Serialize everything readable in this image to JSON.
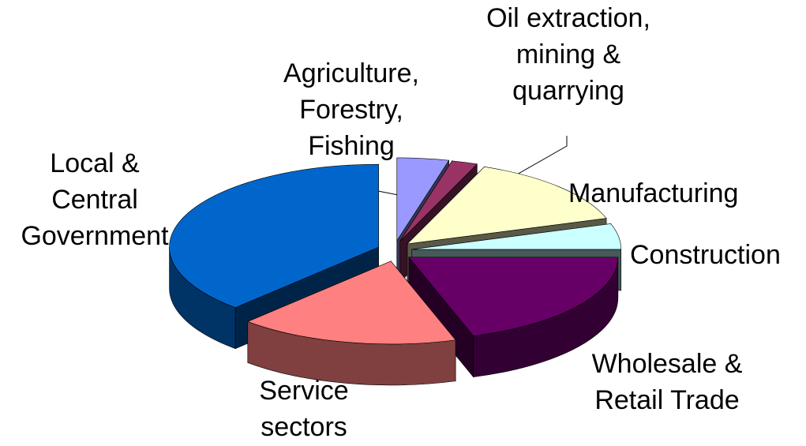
{
  "chart_data": {
    "type": "pie",
    "categories": [
      "Agriculture, Forestry, Fishing",
      "Oil extraction, mining & quarrying",
      "Manufacturing",
      "Construction",
      "Wholesale & Retail Trade",
      "Service sectors",
      "Local & Central Government"
    ],
    "values": [
      4,
      2,
      14,
      5,
      20,
      17,
      38
    ],
    "colors": [
      "#9999ff",
      "#993366",
      "#ffffcc",
      "#ccffff",
      "#660066",
      "#ff8080",
      "#0066cc"
    ]
  }
}
